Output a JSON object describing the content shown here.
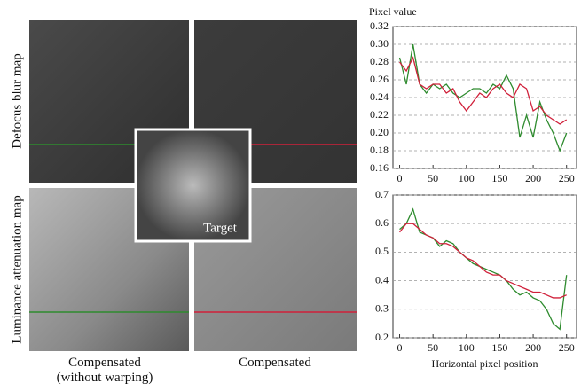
{
  "figure": {
    "row_labels": [
      "Defocus blur map",
      "Luminance attenuation map"
    ],
    "column_labels": [
      "Compensated\n(without warping)",
      "Compensated"
    ],
    "target_label": "Target"
  },
  "chart_data": [
    {
      "type": "line",
      "y_label": "Pixel value",
      "x": [
        0,
        10,
        20,
        30,
        40,
        50,
        60,
        70,
        80,
        90,
        100,
        110,
        120,
        130,
        140,
        150,
        160,
        170,
        180,
        190,
        200,
        210,
        220,
        230,
        240,
        250
      ],
      "series": [
        {
          "color": "#2e8b2e",
          "values": [
            0.285,
            0.255,
            0.3,
            0.255,
            0.245,
            0.255,
            0.25,
            0.255,
            0.245,
            0.24,
            0.245,
            0.25,
            0.25,
            0.245,
            0.255,
            0.25,
            0.265,
            0.25,
            0.195,
            0.22,
            0.195,
            0.235,
            0.215,
            0.2,
            0.18,
            0.2
          ]
        },
        {
          "color": "#d0203a",
          "values": [
            0.28,
            0.27,
            0.285,
            0.255,
            0.25,
            0.255,
            0.255,
            0.245,
            0.25,
            0.235,
            0.225,
            0.235,
            0.245,
            0.24,
            0.25,
            0.255,
            0.245,
            0.24,
            0.255,
            0.25,
            0.225,
            0.23,
            0.22,
            0.215,
            0.21,
            0.215
          ]
        }
      ],
      "xlim": [
        -10,
        265
      ],
      "xticks": [
        0,
        50,
        100,
        150,
        200,
        250
      ],
      "ylim": [
        0.16,
        0.32
      ],
      "yticks": [
        0.16,
        0.18,
        {
          "value": 0.2,
          "label": "0.20"
        },
        0.22,
        0.24,
        0.26,
        0.28,
        {
          "value": 0.3,
          "label": "0.30"
        },
        0.32
      ],
      "grid": true
    },
    {
      "type": "line",
      "x_label": "Horizontal pixel position",
      "x": [
        0,
        10,
        20,
        30,
        40,
        50,
        60,
        70,
        80,
        90,
        100,
        110,
        120,
        130,
        140,
        150,
        160,
        170,
        180,
        190,
        200,
        210,
        220,
        230,
        240,
        250
      ],
      "series": [
        {
          "color": "#2e8b2e",
          "values": [
            0.58,
            0.6,
            0.65,
            0.57,
            0.56,
            0.55,
            0.52,
            0.54,
            0.53,
            0.5,
            0.48,
            0.46,
            0.45,
            0.44,
            0.43,
            0.42,
            0.4,
            0.37,
            0.35,
            0.36,
            0.34,
            0.33,
            0.3,
            0.25,
            0.23,
            0.42
          ]
        },
        {
          "color": "#d0203a",
          "values": [
            0.57,
            0.6,
            0.6,
            0.58,
            0.56,
            0.55,
            0.53,
            0.53,
            0.52,
            0.5,
            0.48,
            0.47,
            0.45,
            0.43,
            0.42,
            0.42,
            0.4,
            0.39,
            0.38,
            0.37,
            0.36,
            0.36,
            0.35,
            0.34,
            0.34,
            0.35
          ]
        }
      ],
      "xlim": [
        -10,
        265
      ],
      "xticks": [
        0,
        50,
        100,
        150,
        200,
        250
      ],
      "ylim": [
        0.2,
        0.7
      ],
      "yticks": [
        0.2,
        0.3,
        0.4,
        0.5,
        0.6,
        0.7
      ],
      "grid": true
    }
  ]
}
